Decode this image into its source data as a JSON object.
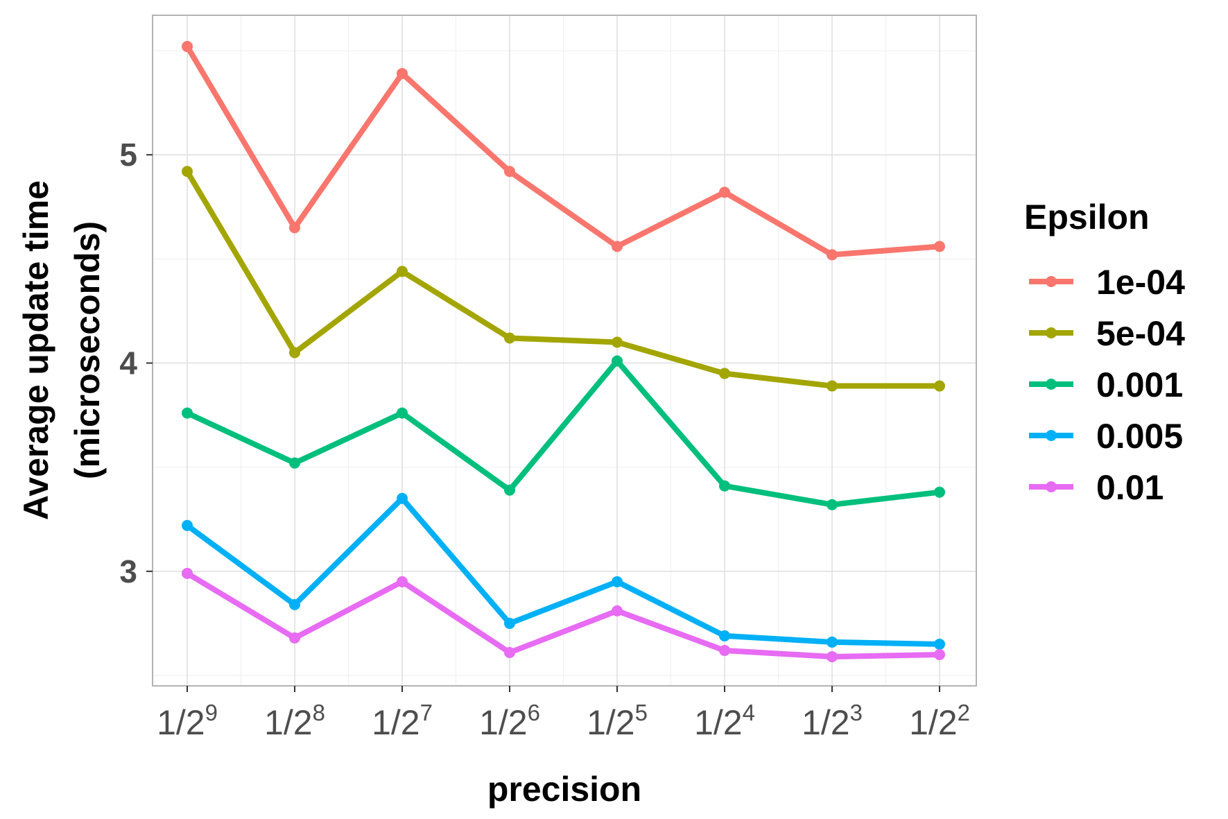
{
  "chart_data": {
    "type": "line",
    "xlabel": "precision",
    "ylabel_line1": "Average update time",
    "ylabel_line2": "(microseconds)",
    "x_ticks": [
      {
        "base": "1/2",
        "exp": "9"
      },
      {
        "base": "1/2",
        "exp": "8"
      },
      {
        "base": "1/2",
        "exp": "7"
      },
      {
        "base": "1/2",
        "exp": "6"
      },
      {
        "base": "1/2",
        "exp": "5"
      },
      {
        "base": "1/2",
        "exp": "4"
      },
      {
        "base": "1/2",
        "exp": "3"
      },
      {
        "base": "1/2",
        "exp": "2"
      }
    ],
    "categories": [
      "1/2^9",
      "1/2^8",
      "1/2^7",
      "1/2^6",
      "1/2^5",
      "1/2^4",
      "1/2^3",
      "1/2^2"
    ],
    "y_ticks": [
      3,
      4,
      5
    ],
    "y_tick_labels": [
      "3",
      "4",
      "5"
    ],
    "ylim": [
      2.45,
      5.67
    ],
    "grid": true,
    "legend": {
      "title": "Epsilon",
      "placement": "right"
    },
    "series": [
      {
        "name": "1e-04",
        "color": "#F8766D",
        "values": [
          5.52,
          4.65,
          5.39,
          4.92,
          4.56,
          4.82,
          4.52,
          4.56
        ]
      },
      {
        "name": "5e-04",
        "color": "#A3A500",
        "values": [
          4.92,
          4.05,
          4.44,
          4.12,
          4.1,
          3.95,
          3.89,
          3.89
        ]
      },
      {
        "name": "0.001",
        "color": "#00BF7D",
        "values": [
          3.76,
          3.52,
          3.76,
          3.39,
          4.01,
          3.41,
          3.32,
          3.38
        ]
      },
      {
        "name": "0.005",
        "color": "#00B0F6",
        "values": [
          3.22,
          2.84,
          3.35,
          2.75,
          2.95,
          2.69,
          2.66,
          2.65
        ]
      },
      {
        "name": "0.01",
        "color": "#E76BF3",
        "values": [
          2.99,
          2.68,
          2.95,
          2.61,
          2.81,
          2.62,
          2.59,
          2.6
        ]
      }
    ]
  }
}
